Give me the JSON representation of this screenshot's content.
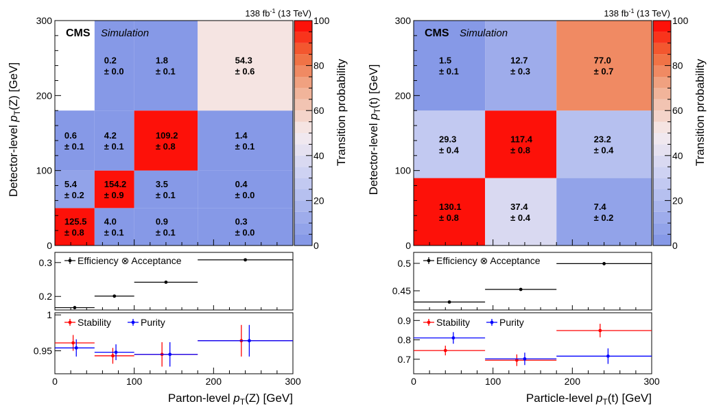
{
  "panels": [
    {
      "lumi": "138 fb",
      "lumi_sup": "-1",
      "lumi_energy": " (13 TeV)",
      "cms": "CMS",
      "sim": "Simulation",
      "ylabel": "Detector-level p_T(Z)   [GeV]",
      "xlabel": "Parton-level p_T(Z)   [GeV]",
      "zlabel": "Transition probability"
    },
    {
      "lumi": "138 fb",
      "lumi_sup": "-1",
      "lumi_energy": " (13 TeV)",
      "cms": "CMS",
      "sim": "Simulation",
      "ylabel": "Detector-level p_T(t)   [GeV]",
      "xlabel": "Particle-level p_T(t)   [GeV]",
      "zlabel": "Transition probability"
    }
  ],
  "chart_data": [
    {
      "type": "heatmap",
      "title": "",
      "xlabel": "Parton-level pT(Z) [GeV]",
      "ylabel": "Detector-level pT(Z) [GeV]",
      "zlabel": "Transition probability",
      "x_edges": [
        0,
        50,
        100,
        180,
        300
      ],
      "y_edges": [
        0,
        50,
        100,
        180,
        300
      ],
      "xlim": [
        0,
        300
      ],
      "ylim": [
        0,
        300
      ],
      "x_ticks": [
        0,
        100,
        200,
        300
      ],
      "y_ticks": [
        0,
        100,
        200,
        300
      ],
      "zlim": [
        0,
        100
      ],
      "z_ticks": [
        0,
        20,
        40,
        60,
        80,
        100
      ],
      "cells": [
        {
          "x": 0,
          "y": 0,
          "value": 125.5,
          "error": 0.8
        },
        {
          "x": 1,
          "y": 0,
          "value": 4.0,
          "error": 0.1
        },
        {
          "x": 2,
          "y": 0,
          "value": 0.9,
          "error": 0.1
        },
        {
          "x": 3,
          "y": 0,
          "value": 0.3,
          "error": 0.0
        },
        {
          "x": 0,
          "y": 1,
          "value": 5.4,
          "error": 0.2
        },
        {
          "x": 1,
          "y": 1,
          "value": 154.2,
          "error": 0.9
        },
        {
          "x": 2,
          "y": 1,
          "value": 3.5,
          "error": 0.1
        },
        {
          "x": 3,
          "y": 1,
          "value": 0.4,
          "error": 0.0
        },
        {
          "x": 0,
          "y": 2,
          "value": 0.6,
          "error": 0.1
        },
        {
          "x": 1,
          "y": 2,
          "value": 4.2,
          "error": 0.1
        },
        {
          "x": 2,
          "y": 2,
          "value": 109.2,
          "error": 0.8
        },
        {
          "x": 3,
          "y": 2,
          "value": 1.4,
          "error": 0.1
        },
        {
          "x": 1,
          "y": 3,
          "value": 0.2,
          "error": 0.0
        },
        {
          "x": 2,
          "y": 3,
          "value": 1.8,
          "error": 0.1
        },
        {
          "x": 3,
          "y": 3,
          "value": 54.3,
          "error": 0.6
        }
      ],
      "efficiency": {
        "legend": "Efficiency ⊗ Acceptance",
        "ylim": [
          0.16,
          0.33
        ],
        "y_ticks": [
          0.2,
          0.3
        ],
        "points": [
          {
            "x": 25,
            "xerr": [
              0,
              50
            ],
            "y": 0.167,
            "yerr": 0.002
          },
          {
            "x": 75,
            "xerr": [
              50,
              100
            ],
            "y": 0.201,
            "yerr": 0.002
          },
          {
            "x": 140,
            "xerr": [
              100,
              180
            ],
            "y": 0.242,
            "yerr": 0.002
          },
          {
            "x": 240,
            "xerr": [
              180,
              300
            ],
            "y": 0.308,
            "yerr": 0.003
          }
        ]
      },
      "stability_purity": {
        "ylim": [
          0.918,
          1.003
        ],
        "y_ticks": [
          0.95,
          1
        ],
        "x_ticks": [
          0,
          100,
          200,
          300
        ],
        "series": [
          {
            "name": "Stability",
            "color": "#ff0000",
            "points": [
              {
                "x": 23,
                "xerr": [
                  0,
                  50
                ],
                "y": 0.961,
                "yerr": 0.011
              },
              {
                "x": 73,
                "xerr": [
                  50,
                  100
                ],
                "y": 0.943,
                "yerr": 0.011
              },
              {
                "x": 135,
                "xerr": [
                  100,
                  180
                ],
                "y": 0.945,
                "yerr": 0.017
              },
              {
                "x": 235,
                "xerr": [
                  180,
                  300
                ],
                "y": 0.964,
                "yerr": 0.022
              }
            ]
          },
          {
            "name": "Purity",
            "color": "#0000ff",
            "points": [
              {
                "x": 27,
                "xerr": [
                  0,
                  50
                ],
                "y": 0.954,
                "yerr": 0.012
              },
              {
                "x": 77,
                "xerr": [
                  50,
                  100
                ],
                "y": 0.948,
                "yerr": 0.011
              },
              {
                "x": 145,
                "xerr": [
                  100,
                  180
                ],
                "y": 0.945,
                "yerr": 0.017
              },
              {
                "x": 245,
                "xerr": [
                  180,
                  300
                ],
                "y": 0.964,
                "yerr": 0.022
              }
            ]
          }
        ]
      }
    },
    {
      "type": "heatmap",
      "title": "",
      "xlabel": "Particle-level pT(t) [GeV]",
      "ylabel": "Detector-level pT(t) [GeV]",
      "zlabel": "Transition probability",
      "x_edges": [
        0,
        90,
        180,
        300
      ],
      "y_edges": [
        0,
        90,
        180,
        300
      ],
      "xlim": [
        0,
        300
      ],
      "ylim": [
        0,
        300
      ],
      "x_ticks": [
        0,
        100,
        200,
        300
      ],
      "y_ticks": [
        0,
        100,
        200,
        300
      ],
      "zlim": [
        0,
        100
      ],
      "z_ticks": [
        0,
        20,
        40,
        60,
        80,
        100
      ],
      "cells": [
        {
          "x": 0,
          "y": 0,
          "value": 130.1,
          "error": 0.8
        },
        {
          "x": 1,
          "y": 0,
          "value": 37.4,
          "error": 0.4
        },
        {
          "x": 2,
          "y": 0,
          "value": 7.4,
          "error": 0.2
        },
        {
          "x": 0,
          "y": 1,
          "value": 29.3,
          "error": 0.4
        },
        {
          "x": 1,
          "y": 1,
          "value": 117.4,
          "error": 0.8
        },
        {
          "x": 2,
          "y": 1,
          "value": 23.2,
          "error": 0.4
        },
        {
          "x": 0,
          "y": 2,
          "value": 1.5,
          "error": 0.1
        },
        {
          "x": 1,
          "y": 2,
          "value": 12.7,
          "error": 0.3
        },
        {
          "x": 2,
          "y": 2,
          "value": 77.0,
          "error": 0.7
        }
      ],
      "efficiency": {
        "legend": "Efficiency ⊗ Acceptance",
        "ylim": [
          0.415,
          0.52
        ],
        "y_ticks": [
          0.45,
          0.5
        ],
        "points": [
          {
            "x": 45,
            "xerr": [
              0,
              90
            ],
            "y": 0.4295,
            "yerr": 0.002
          },
          {
            "x": 135,
            "xerr": [
              90,
              180
            ],
            "y": 0.4525,
            "yerr": 0.002
          },
          {
            "x": 240,
            "xerr": [
              180,
              300
            ],
            "y": 0.4995,
            "yerr": 0.003
          }
        ]
      },
      "stability_purity": {
        "ylim": [
          0.625,
          0.94
        ],
        "y_ticks": [
          0.7,
          0.8,
          0.9
        ],
        "x_ticks": [
          0,
          100,
          200,
          300
        ],
        "series": [
          {
            "name": "Stability",
            "color": "#ff0000",
            "points": [
              {
                "x": 40,
                "xerr": [
                  0,
                  90
                ],
                "y": 0.745,
                "yerr": 0.025
              },
              {
                "x": 130,
                "xerr": [
                  90,
                  180
                ],
                "y": 0.695,
                "yerr": 0.03
              },
              {
                "x": 235,
                "xerr": [
                  180,
                  300
                ],
                "y": 0.848,
                "yerr": 0.035
              }
            ]
          },
          {
            "name": "Purity",
            "color": "#0000ff",
            "points": [
              {
                "x": 50,
                "xerr": [
                  0,
                  90
                ],
                "y": 0.81,
                "yerr": 0.03
              },
              {
                "x": 140,
                "xerr": [
                  90,
                  180
                ],
                "y": 0.702,
                "yerr": 0.032
              },
              {
                "x": 245,
                "xerr": [
                  180,
                  300
                ],
                "y": 0.716,
                "yerr": 0.04
              }
            ]
          }
        ]
      }
    }
  ]
}
